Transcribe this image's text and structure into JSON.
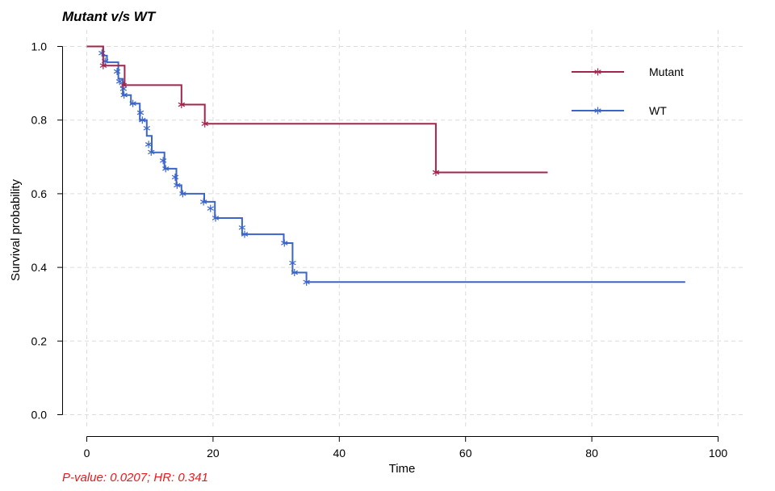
{
  "chart_data": {
    "type": "line",
    "title": "Mutant v/s WT",
    "xlabel": "Time",
    "ylabel": "Survival probability",
    "xlim": [
      0,
      100
    ],
    "ylim": [
      0,
      1
    ],
    "xticks": [
      0,
      20,
      40,
      60,
      80,
      100
    ],
    "yticks": [
      0.0,
      0.2,
      0.4,
      0.6,
      0.8,
      1.0
    ],
    "ytick_labels": [
      "0.0",
      "0.2",
      "0.4",
      "0.6",
      "0.8",
      "1.0"
    ],
    "grid": true,
    "legend_position": "top-right",
    "annotation": "P-value: 0.0207; HR: 0.341",
    "annotation_color": "#e8191c",
    "series": [
      {
        "name": "Mutant",
        "color": "#a3254e",
        "step_x": [
          0,
          2.6,
          2.6,
          6.0,
          6.0,
          15.0,
          15.0,
          18.7,
          18.7,
          55.3,
          55.3,
          73.0
        ],
        "step_y": [
          1.0,
          1.0,
          0.948,
          0.948,
          0.895,
          0.895,
          0.842,
          0.842,
          0.79,
          0.79,
          0.658,
          0.658
        ],
        "censored": [
          [
            2.6,
            0.948
          ],
          [
            5.8,
            0.895
          ],
          [
            15.0,
            0.842
          ],
          [
            18.7,
            0.79
          ],
          [
            55.3,
            0.658
          ]
        ]
      },
      {
        "name": "WT",
        "color": "#3b65c8",
        "step_x": [
          0,
          2.6,
          2.6,
          3.2,
          3.2,
          5.0,
          5.0,
          5.7,
          5.7,
          7.0,
          7.0,
          8.4,
          8.4,
          9.5,
          9.5,
          10.3,
          10.3,
          12.3,
          12.3,
          14.2,
          14.2,
          15.0,
          15.0,
          18.6,
          18.6,
          20.3,
          20.3,
          24.6,
          24.6,
          31.2,
          31.2,
          32.6,
          32.6,
          34.8,
          34.8,
          94.8
        ],
        "step_y": [
          1.0,
          1.0,
          0.975,
          0.975,
          0.957,
          0.957,
          0.912,
          0.912,
          0.868,
          0.868,
          0.845,
          0.845,
          0.8,
          0.8,
          0.757,
          0.757,
          0.712,
          0.712,
          0.668,
          0.668,
          0.623,
          0.623,
          0.6,
          0.6,
          0.578,
          0.578,
          0.534,
          0.534,
          0.49,
          0.49,
          0.466,
          0.466,
          0.386,
          0.386,
          0.36,
          0.36
        ],
        "censored": [
          [
            2.4,
            0.982
          ],
          [
            2.9,
            0.96
          ],
          [
            4.8,
            0.932
          ],
          [
            5.2,
            0.905
          ],
          [
            5.8,
            0.885
          ],
          [
            5.9,
            0.868
          ],
          [
            7.3,
            0.845
          ],
          [
            8.5,
            0.82
          ],
          [
            8.8,
            0.8
          ],
          [
            9.5,
            0.778
          ],
          [
            9.8,
            0.734
          ],
          [
            10.2,
            0.713
          ],
          [
            12.1,
            0.69
          ],
          [
            12.5,
            0.668
          ],
          [
            14.0,
            0.645
          ],
          [
            14.3,
            0.623
          ],
          [
            15.2,
            0.6
          ],
          [
            18.5,
            0.578
          ],
          [
            19.6,
            0.56
          ],
          [
            20.4,
            0.534
          ],
          [
            24.6,
            0.508
          ],
          [
            25.0,
            0.49
          ],
          [
            31.3,
            0.466
          ],
          [
            32.6,
            0.412
          ],
          [
            32.9,
            0.386
          ],
          [
            34.8,
            0.36
          ]
        ]
      }
    ]
  }
}
